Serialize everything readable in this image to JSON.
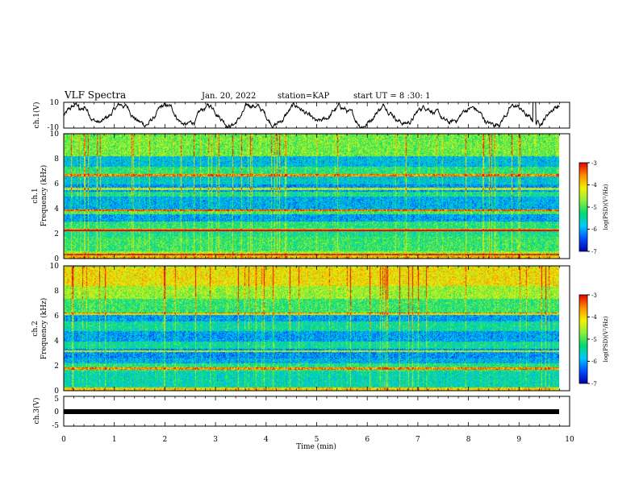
{
  "header": {
    "title": "VLF Spectra",
    "date": "Jan. 20, 2022",
    "station": "station=KAP",
    "start_ut": "start UT = 8 :30: 1"
  },
  "colors": {
    "colormap": [
      "#0000b4",
      "#0050ff",
      "#00c8ff",
      "#00dc6e",
      "#8cf03c",
      "#f5f000",
      "#ff8c00",
      "#e60000"
    ],
    "waveform": "#000000",
    "strip": "#000000"
  },
  "chart_data": [
    {
      "type": "line",
      "name": "ch1-waveform",
      "ylabel": "ch.1(V)",
      "ylim": [
        -10,
        10
      ],
      "y_ticks": [
        "10",
        "-10"
      ],
      "x_range_min": [
        0,
        10
      ],
      "note_values": "approximate amplitude envelope"
    },
    {
      "type": "heatmap",
      "name": "ch1-spectrogram",
      "ylabel_line1": "ch.1",
      "ylabel_line2": "Frequency (kHz)",
      "ylim_khz": [
        0,
        10
      ],
      "y_ticks": [
        "0",
        "2",
        "4",
        "6",
        "8",
        "10"
      ],
      "x_range_min": [
        0,
        9.85
      ],
      "colorbar": {
        "label": "log(PSD)(V²/Hz)",
        "range": [
          -7,
          -3
        ],
        "ticks": [
          "-3",
          "-4",
          "-5",
          "-6",
          "-7"
        ]
      },
      "bands": [
        {
          "f0": 0.0,
          "f1": 0.2,
          "level": -3.8
        },
        {
          "f0": 0.2,
          "f1": 0.6,
          "level": -4.6
        },
        {
          "f0": 0.6,
          "f1": 1.8,
          "level": -5.1
        },
        {
          "f0": 1.8,
          "f1": 2.2,
          "level": -5.3
        },
        {
          "f0": 2.2,
          "f1": 2.4,
          "level": -4.0
        },
        {
          "f0": 2.4,
          "f1": 3.0,
          "level": -5.2
        },
        {
          "f0": 3.0,
          "f1": 3.6,
          "level": -6.0
        },
        {
          "f0": 3.6,
          "f1": 4.0,
          "level": -5.0
        },
        {
          "f0": 4.0,
          "f1": 5.0,
          "level": -5.9
        },
        {
          "f0": 5.0,
          "f1": 5.4,
          "level": -5.3
        },
        {
          "f0": 5.4,
          "f1": 6.0,
          "level": -6.1
        },
        {
          "f0": 6.0,
          "f1": 6.6,
          "level": -5.7
        },
        {
          "f0": 6.6,
          "f1": 7.4,
          "level": -5.2
        },
        {
          "f0": 7.4,
          "f1": 8.2,
          "level": -5.8
        },
        {
          "f0": 8.2,
          "f1": 10.0,
          "level": -4.8
        }
      ],
      "lines_khz": [
        0.35,
        2.3,
        3.9,
        5.6,
        6.7
      ]
    },
    {
      "type": "heatmap",
      "name": "ch2-spectrogram",
      "ylabel_line1": "ch.2",
      "ylabel_line2": "Frequency (kHz)",
      "ylim_khz": [
        0,
        10
      ],
      "y_ticks": [
        "0",
        "2",
        "4",
        "6",
        "8",
        "10"
      ],
      "x_range_min": [
        0,
        9.85
      ],
      "colorbar": {
        "label": "log(PSD)(V²/Hz)",
        "range": [
          -7,
          -3
        ],
        "ticks": [
          "-3",
          "-4",
          "-5",
          "-6",
          "-7"
        ]
      },
      "bands": [
        {
          "f0": 0.0,
          "f1": 0.3,
          "level": -4.0
        },
        {
          "f0": 0.3,
          "f1": 1.6,
          "level": -5.5
        },
        {
          "f0": 1.6,
          "f1": 2.2,
          "level": -5.2
        },
        {
          "f0": 2.2,
          "f1": 2.6,
          "level": -5.9
        },
        {
          "f0": 2.6,
          "f1": 3.4,
          "level": -6.1
        },
        {
          "f0": 3.4,
          "f1": 4.0,
          "level": -5.4
        },
        {
          "f0": 4.0,
          "f1": 4.8,
          "level": -6.0
        },
        {
          "f0": 4.8,
          "f1": 5.6,
          "level": -5.4
        },
        {
          "f0": 5.6,
          "f1": 6.2,
          "level": -6.0
        },
        {
          "f0": 6.2,
          "f1": 7.4,
          "level": -5.1
        },
        {
          "f0": 7.4,
          "f1": 8.4,
          "level": -4.6
        },
        {
          "f0": 8.4,
          "f1": 10.0,
          "level": -4.1
        }
      ],
      "lines_khz": [
        1.8,
        3.2,
        6.2
      ]
    },
    {
      "type": "line",
      "name": "ch3-strip",
      "ylabel": "ch.3(V)",
      "ylim": [
        -5,
        5
      ],
      "y_ticks": [
        "5",
        "0",
        "-5"
      ],
      "x_range_min": [
        0,
        9.85
      ],
      "level_v": 0.0
    }
  ],
  "x_axis": {
    "label": "Time (min)",
    "xlim": [
      0,
      10
    ],
    "ticks": [
      "0",
      "1",
      "2",
      "3",
      "4",
      "5",
      "6",
      "7",
      "8",
      "9",
      "10"
    ]
  }
}
